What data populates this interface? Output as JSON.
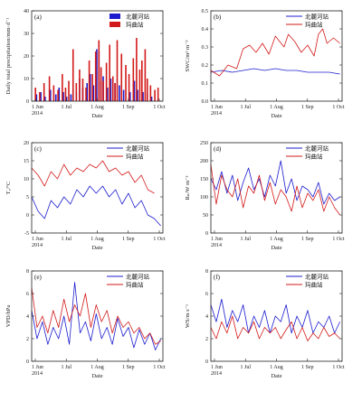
{
  "colors": {
    "series1": "#1c1ccf",
    "series2": "#d31a1a",
    "axis": "#222222"
  },
  "panels_order": [
    "a",
    "b",
    "c",
    "d",
    "e",
    "f"
  ],
  "chart_data": [
    {
      "id": "a",
      "type": "bar",
      "panel_label": "(a)",
      "ylabel": "Daily total precipitation/mm·d⁻¹",
      "xlabel": "Date",
      "ylim": [
        0,
        40
      ],
      "yticks": [
        0,
        10,
        20,
        30,
        40
      ],
      "xticks": [
        "1 Jun\n2014",
        "1 Jul",
        "1 Aug",
        "1 Sep",
        "1 Oct"
      ],
      "xrange_days": [
        0,
        122
      ],
      "legend": "top-right",
      "series": [
        {
          "name": "北麓河站",
          "color": "#1c1ccf",
          "days": [
            5,
            9,
            13,
            18,
            23,
            26,
            30,
            33,
            37,
            39,
            42,
            45,
            48,
            52,
            55,
            58,
            61,
            63,
            65,
            67,
            71,
            74,
            78,
            82,
            86,
            92,
            96,
            99,
            104,
            108,
            112
          ],
          "values": [
            3,
            4,
            2,
            5,
            3,
            6,
            4,
            2,
            3,
            5,
            4,
            10,
            6,
            8,
            12,
            7,
            23,
            22,
            9,
            11,
            6,
            10,
            8,
            7,
            5,
            4,
            9,
            5,
            4,
            3,
            2
          ]
        },
        {
          "name": "玛曲站",
          "color": "#d31a1a",
          "days": [
            3,
            7,
            11,
            16,
            20,
            24,
            28,
            31,
            34,
            38,
            41,
            44,
            47,
            50,
            53,
            56,
            59,
            62,
            64,
            66,
            69,
            72,
            75,
            77,
            79,
            83,
            87,
            90,
            94,
            97,
            100,
            102,
            105,
            107,
            110,
            114,
            117
          ],
          "values": [
            6,
            4,
            8,
            11,
            7,
            5,
            12,
            6,
            9,
            23,
            8,
            14,
            10,
            6,
            18,
            12,
            22,
            27,
            15,
            9,
            17,
            25,
            11,
            8,
            27,
            21,
            16,
            12,
            19,
            28,
            14,
            18,
            23,
            10,
            7,
            5,
            6
          ]
        }
      ]
    },
    {
      "id": "b",
      "type": "line",
      "panel_label": "(b)",
      "ylabel": "SWC/m³ m⁻³",
      "xlabel": "Date",
      "ylim": [
        0,
        0.5
      ],
      "yticks": [
        0.0,
        0.1,
        0.2,
        0.3,
        0.4,
        0.5
      ],
      "xticks": [
        "1 Jun\n2014",
        "1 Jul",
        "1 Aug",
        "1 Sep",
        "1 Oct"
      ],
      "xrange_days": [
        0,
        122
      ],
      "legend": "top-right",
      "series": [
        {
          "name": "北麓河站",
          "color": "#1c1ccf",
          "days": [
            0,
            10,
            20,
            30,
            40,
            50,
            60,
            70,
            80,
            90,
            100,
            110,
            120
          ],
          "values": [
            0.16,
            0.17,
            0.16,
            0.17,
            0.18,
            0.17,
            0.18,
            0.17,
            0.17,
            0.16,
            0.16,
            0.16,
            0.15
          ]
        },
        {
          "name": "玛曲站",
          "color": "#d31a1a",
          "days": [
            0,
            8,
            16,
            24,
            30,
            36,
            42,
            48,
            54,
            60,
            64,
            68,
            72,
            78,
            84,
            90,
            96,
            100,
            104,
            108,
            114,
            120
          ],
          "values": [
            0.17,
            0.14,
            0.2,
            0.18,
            0.29,
            0.31,
            0.27,
            0.32,
            0.26,
            0.36,
            0.33,
            0.3,
            0.37,
            0.33,
            0.27,
            0.31,
            0.25,
            0.37,
            0.4,
            0.32,
            0.35,
            0.32
          ]
        }
      ]
    },
    {
      "id": "c",
      "type": "line",
      "panel_label": "(c)",
      "ylabel": "Tₐ/°C",
      "xlabel": "Date",
      "ylim": [
        -5,
        20
      ],
      "yticks": [
        -5,
        0,
        5,
        10,
        15,
        20
      ],
      "xticks": [
        "1 Jun\n2014",
        "1 Jul",
        "1 Aug",
        "1 Sep",
        "1 Oct"
      ],
      "xrange_days": [
        0,
        122
      ],
      "legend": "top-right",
      "series": [
        {
          "name": "北麓河站",
          "color": "#1c1ccf",
          "days": [
            0,
            6,
            12,
            18,
            24,
            30,
            36,
            42,
            48,
            54,
            60,
            66,
            72,
            78,
            84,
            90,
            96,
            102,
            108,
            114,
            120
          ],
          "values": [
            5,
            1,
            -1,
            4,
            2,
            5,
            3,
            7,
            5,
            8,
            6,
            8,
            5,
            7,
            3,
            6,
            2,
            4,
            0,
            -1,
            -3
          ]
        },
        {
          "name": "玛曲站",
          "color": "#d31a1a",
          "days": [
            0,
            6,
            12,
            18,
            24,
            30,
            36,
            42,
            48,
            54,
            60,
            66,
            72,
            78,
            84,
            90,
            96,
            102,
            108,
            114
          ],
          "values": [
            13,
            11,
            8,
            12,
            10,
            14,
            11,
            13,
            12,
            14,
            13,
            15,
            12,
            13,
            11,
            12,
            9,
            11,
            7,
            6
          ]
        }
      ]
    },
    {
      "id": "d",
      "type": "line",
      "panel_label": "(d)",
      "ylabel": "Rₙ/W m⁻²",
      "xlabel": "Date",
      "ylim": [
        0,
        250
      ],
      "yticks": [
        0,
        50,
        100,
        150,
        200,
        250
      ],
      "xticks": [
        "1 Jun\n2014",
        "1 Jul",
        "1 Aug",
        "1 Sep",
        "1 Oct"
      ],
      "xrange_days": [
        0,
        122
      ],
      "legend": "top-right",
      "series": [
        {
          "name": "北麓河站",
          "color": "#1c1ccf",
          "days": [
            0,
            5,
            10,
            15,
            20,
            25,
            30,
            35,
            40,
            45,
            50,
            55,
            60,
            65,
            70,
            75,
            80,
            85,
            90,
            95,
            100,
            105,
            110,
            115,
            120
          ],
          "values": [
            150,
            120,
            170,
            110,
            160,
            90,
            140,
            180,
            120,
            150,
            100,
            160,
            130,
            200,
            110,
            150,
            90,
            130,
            120,
            100,
            140,
            80,
            110,
            90,
            100
          ]
        },
        {
          "name": "玛曲站",
          "color": "#d31a1a",
          "days": [
            0,
            5,
            10,
            15,
            20,
            25,
            30,
            35,
            40,
            45,
            50,
            55,
            60,
            65,
            70,
            75,
            80,
            85,
            90,
            95,
            100,
            105,
            110,
            115,
            120
          ],
          "values": [
            190,
            80,
            160,
            120,
            100,
            150,
            70,
            130,
            110,
            160,
            90,
            140,
            80,
            120,
            100,
            60,
            130,
            70,
            110,
            90,
            120,
            60,
            100,
            70,
            50
          ]
        }
      ]
    },
    {
      "id": "e",
      "type": "line",
      "panel_label": "(e)",
      "ylabel": "VPD/hPa",
      "xlabel": "Date",
      "ylim": [
        0,
        8
      ],
      "yticks": [
        0,
        2,
        4,
        6,
        8
      ],
      "xticks": [
        "1 Jun\n2014",
        "1 Jul",
        "1 Aug",
        "1 Sep",
        "1 Oct"
      ],
      "xrange_days": [
        0,
        122
      ],
      "legend": "top-right",
      "series": [
        {
          "name": "北麓河站",
          "color": "#1c1ccf",
          "days": [
            0,
            5,
            10,
            15,
            20,
            25,
            30,
            35,
            40,
            45,
            50,
            55,
            60,
            65,
            70,
            75,
            80,
            85,
            90,
            95,
            100,
            105,
            110,
            115,
            120
          ],
          "values": [
            4.5,
            2.0,
            3.5,
            1.5,
            3.0,
            2.0,
            4.0,
            1.5,
            7.0,
            2.5,
            3.5,
            1.8,
            4.2,
            2.0,
            3.0,
            1.5,
            3.8,
            2.2,
            3.0,
            1.2,
            2.8,
            1.5,
            2.5,
            1.0,
            2.0
          ]
        },
        {
          "name": "玛曲站",
          "color": "#d31a1a",
          "days": [
            0,
            5,
            10,
            15,
            20,
            25,
            30,
            35,
            40,
            45,
            50,
            55,
            60,
            65,
            70,
            75,
            80,
            85,
            90,
            95,
            100,
            105,
            110,
            115,
            120
          ],
          "values": [
            6.5,
            3.0,
            4.0,
            2.5,
            4.5,
            3.0,
            5.5,
            3.5,
            5.0,
            4.0,
            6.0,
            3.0,
            5.0,
            3.5,
            4.5,
            2.5,
            4.0,
            3.0,
            3.5,
            2.5,
            3.0,
            2.0,
            2.5,
            1.5,
            1.8
          ]
        }
      ]
    },
    {
      "id": "f",
      "type": "line",
      "panel_label": "(f)",
      "ylabel": "WS/m s⁻¹",
      "xlabel": "Date",
      "ylim": [
        0,
        8
      ],
      "yticks": [
        0,
        2,
        4,
        6,
        8
      ],
      "xticks": [
        "1 Jun\n2014",
        "1 Jul",
        "1 Aug",
        "1 Sep",
        "1 Oct"
      ],
      "xrange_days": [
        0,
        122
      ],
      "legend": "top-right",
      "series": [
        {
          "name": "北麓河站",
          "color": "#1c1ccf",
          "days": [
            0,
            5,
            10,
            15,
            20,
            25,
            30,
            35,
            40,
            45,
            50,
            55,
            60,
            65,
            70,
            75,
            80,
            85,
            90,
            95,
            100,
            105,
            110,
            115,
            120
          ],
          "values": [
            5.0,
            3.5,
            5.5,
            3.0,
            4.5,
            3.5,
            5.0,
            2.5,
            4.0,
            3.0,
            4.5,
            2.5,
            4.0,
            3.5,
            5.0,
            2.5,
            4.0,
            3.0,
            4.5,
            2.5,
            3.5,
            3.0,
            4.0,
            2.5,
            3.5
          ]
        },
        {
          "name": "玛曲站",
          "color": "#d31a1a",
          "days": [
            0,
            5,
            10,
            15,
            20,
            25,
            30,
            35,
            40,
            45,
            50,
            55,
            60,
            65,
            70,
            75,
            80,
            85,
            90,
            95,
            100,
            105,
            110,
            115,
            120
          ],
          "values": [
            3.0,
            2.0,
            3.5,
            2.5,
            4.0,
            2.0,
            3.0,
            2.5,
            3.5,
            2.0,
            3.0,
            2.5,
            3.0,
            2.0,
            2.8,
            3.5,
            2.0,
            3.0,
            1.8,
            2.5,
            2.0,
            3.0,
            2.2,
            2.5,
            2.0
          ]
        }
      ]
    }
  ]
}
